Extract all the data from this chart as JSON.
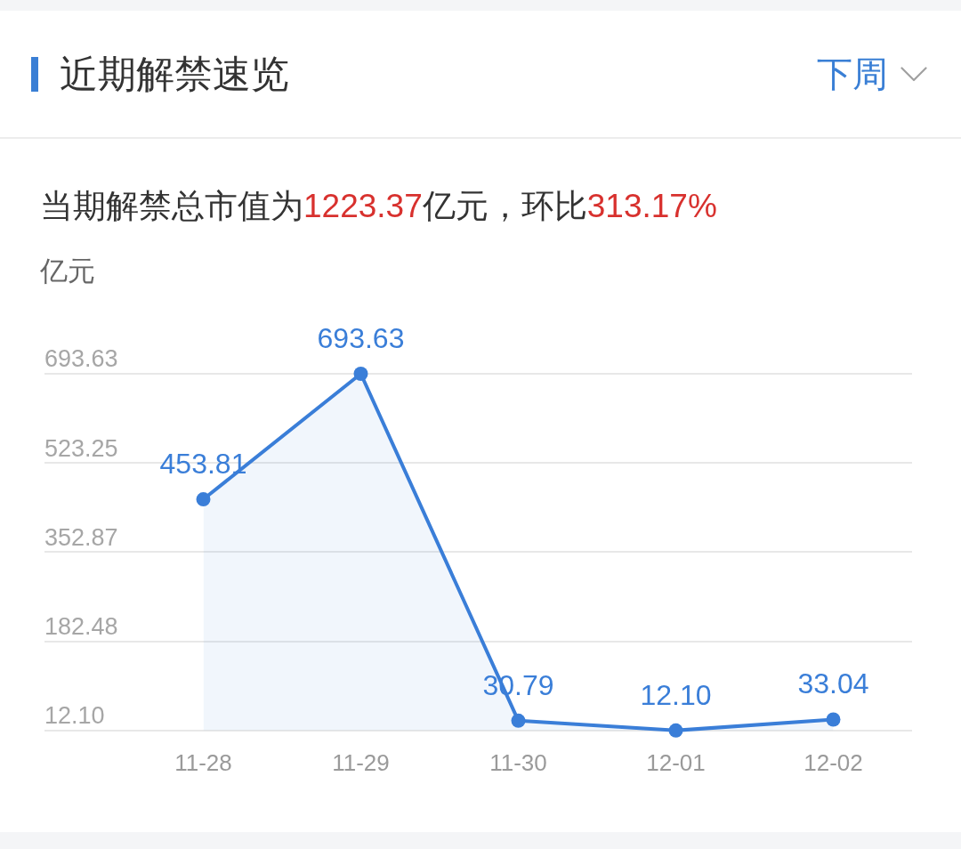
{
  "chart_data": {
    "type": "area",
    "title": "近期解禁速览",
    "subtitle": "当期解禁总市值为1223.37亿元，环比313.17%",
    "ylabel": "亿元",
    "annotations": [
      "下周"
    ],
    "categories": [
      "11-28",
      "11-29",
      "11-30",
      "12-01",
      "12-02"
    ],
    "values": [
      453.81,
      693.63,
      30.79,
      12.1,
      33.04
    ],
    "value_labels": [
      "453.81",
      "693.63",
      "30.79",
      "12.10",
      "33.04"
    ],
    "color": "#3a7ed8",
    "ylim": [
      12.1,
      693.63
    ],
    "yticks": [
      {
        "value": 12.1,
        "label": "12.10"
      },
      182.48,
      352.87,
      523.25,
      693.63
    ],
    "grid": "y",
    "marker": "circle",
    "line_style": "solid"
  }
}
